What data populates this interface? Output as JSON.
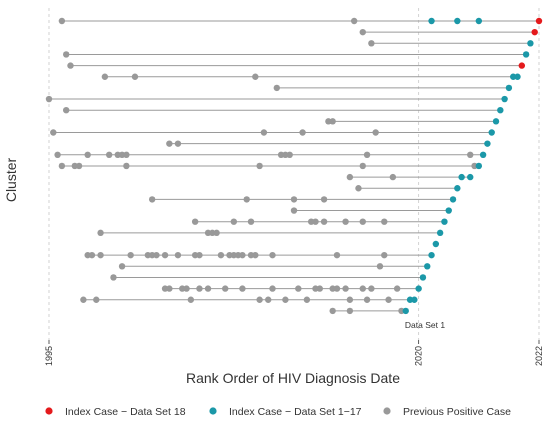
{
  "chart_data": {
    "type": "scatter",
    "subtype": "dot-and-line timeline per cluster",
    "title": "",
    "xlabel": "Rank Order of HIV Diagnosis Date",
    "ylabel": "Cluster",
    "x_ticks": [
      "1995",
      "2020",
      "2022"
    ],
    "annotation": "Data Set 1",
    "grid": "dashed vertical at ticks",
    "legend_position": "bottom",
    "legend": [
      {
        "label": "Index Case − Data Set 18",
        "color": "#e41a1c"
      },
      {
        "label": "Index Case − Data Set 1−17",
        "color": "#1b98a8"
      },
      {
        "label": "Previous Positive Case",
        "color": "#999999"
      }
    ],
    "clusters": [
      {
        "previous": [
          3,
          71
        ],
        "index_1_17": [
          89,
          95,
          100
        ],
        "index_18": [
          114
        ]
      },
      {
        "previous": [
          73
        ],
        "index_1_17": [],
        "index_18": [
          113
        ]
      },
      {
        "previous": [
          75
        ],
        "index_1_17": [
          112
        ],
        "index_18": []
      },
      {
        "previous": [
          4
        ],
        "index_1_17": [
          111
        ],
        "index_18": []
      },
      {
        "previous": [
          5
        ],
        "index_1_17": [],
        "index_18": [
          110
        ]
      },
      {
        "previous": [
          13,
          20,
          48
        ],
        "index_1_17": [
          108,
          109
        ],
        "index_18": []
      },
      {
        "previous": [
          53
        ],
        "index_1_17": [
          107
        ],
        "index_18": []
      },
      {
        "previous": [
          0
        ],
        "index_1_17": [
          106
        ],
        "index_18": []
      },
      {
        "previous": [
          4
        ],
        "index_1_17": [
          105
        ],
        "index_18": []
      },
      {
        "previous": [
          65,
          66
        ],
        "index_1_17": [
          104
        ],
        "index_18": []
      },
      {
        "previous": [
          1,
          50,
          59,
          76
        ],
        "index_1_17": [
          103
        ],
        "index_18": []
      },
      {
        "previous": [
          28,
          30
        ],
        "index_1_17": [
          102
        ],
        "index_18": []
      },
      {
        "previous": [
          2,
          9,
          14,
          16,
          17,
          18,
          54,
          55,
          56,
          74,
          98
        ],
        "index_1_17": [
          101
        ],
        "index_18": []
      },
      {
        "previous": [
          3,
          6,
          7,
          18,
          49,
          73,
          99
        ],
        "index_1_17": [
          100
        ],
        "index_18": []
      },
      {
        "previous": [
          70,
          80
        ],
        "index_1_17": [
          96,
          98
        ],
        "index_18": []
      },
      {
        "previous": [
          72
        ],
        "index_1_17": [
          95
        ],
        "index_18": []
      },
      {
        "previous": [
          24,
          46,
          57,
          64
        ],
        "index_1_17": [
          94
        ],
        "index_18": []
      },
      {
        "previous": [
          57
        ],
        "index_1_17": [
          93
        ],
        "index_18": []
      },
      {
        "previous": [
          34,
          43,
          47,
          61,
          62,
          64,
          69,
          73,
          78
        ],
        "index_1_17": [
          92
        ],
        "index_18": []
      },
      {
        "previous": [
          12,
          37,
          38,
          39
        ],
        "index_1_17": [
          91
        ],
        "index_18": []
      },
      {
        "previous": [],
        "index_1_17": [
          90
        ],
        "index_18": []
      },
      {
        "previous": [
          9,
          10,
          12,
          19,
          23,
          24,
          25,
          27,
          30,
          34,
          35,
          40,
          42,
          43,
          44,
          45,
          47,
          48,
          52,
          67,
          78
        ],
        "index_1_17": [
          89
        ],
        "index_18": []
      },
      {
        "previous": [
          17,
          77
        ],
        "index_1_17": [
          88
        ],
        "index_18": []
      },
      {
        "previous": [
          15
        ],
        "index_1_17": [
          87
        ],
        "index_18": []
      },
      {
        "previous": [
          27,
          28,
          31,
          32,
          35,
          37,
          41,
          45,
          52,
          58,
          62,
          63,
          66,
          67,
          69,
          73,
          75,
          81
        ],
        "index_1_17": [
          86
        ],
        "index_18": []
      },
      {
        "previous": [
          8,
          11,
          33,
          49,
          51,
          55,
          60,
          70,
          74,
          79
        ],
        "index_1_17": [
          84,
          85
        ],
        "index_18": []
      },
      {
        "previous": [
          66,
          70,
          82
        ],
        "index_1_17": [
          83
        ],
        "index_18": []
      }
    ]
  }
}
